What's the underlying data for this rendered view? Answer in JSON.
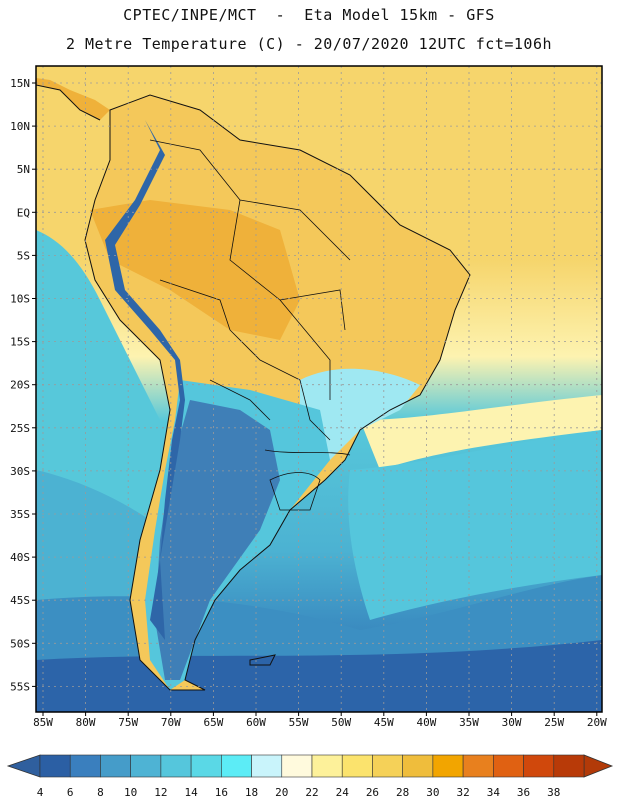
{
  "title_line1": "CPTEC/INPE/MCT  -  Eta Model 15km - GFS",
  "title_line2": "2 Metre Temperature (C) - 20/07/2020 12UTC fct=106h",
  "lat_labels": [
    "15N",
    "10N",
    "5N",
    "EQ",
    "5S",
    "10S",
    "15S",
    "20S",
    "25S",
    "30S",
    "35S",
    "40S",
    "45S",
    "50S",
    "55S"
  ],
  "lon_labels": [
    "85W",
    "80W",
    "75W",
    "70W",
    "65W",
    "60W",
    "55W",
    "50W",
    "45W",
    "40W",
    "35W",
    "30W",
    "25W",
    "20W"
  ],
  "colorbar": {
    "labels": [
      "4",
      "6",
      "8",
      "10",
      "12",
      "14",
      "16",
      "18",
      "20",
      "22",
      "24",
      "26",
      "28",
      "30",
      "32",
      "34",
      "36",
      "38"
    ],
    "colors": [
      "#2b5fa4",
      "#3a7fbe",
      "#459cc9",
      "#4eb3d4",
      "#55c6dc",
      "#5ad8e6",
      "#5cecf6",
      "#c9f4fb",
      "#fffadd",
      "#fdf19a",
      "#fbe36d",
      "#f5d158",
      "#efbd3c",
      "#f2a500",
      "#e8801e",
      "#e06112",
      "#d0480c",
      "#b83a08"
    ],
    "under_color": "#2f5f9e",
    "over_color": "#b23a08"
  },
  "map_colors": {
    "ocean_cold": "#2c64a9",
    "ocean_mid": "#3c8fc2",
    "ocean_cool": "#4cb2d2",
    "ocean_warmish": "#57c8da",
    "ocean_tropic_edge": "#fdf3b0",
    "ocean_tropic": "#f6d56c",
    "land_hot": "#efb13a",
    "land_warm": "#f4c85a",
    "land_mild": "#9fe8f2",
    "andes": "#3f7fb7",
    "patagonia": "#2e66a8"
  }
}
